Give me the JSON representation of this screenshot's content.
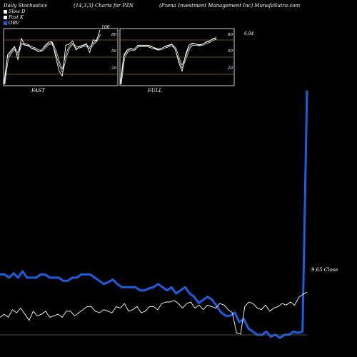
{
  "header": {
    "left": "Daily Stochastics",
    "middle": "(14,3,3) Charts for PZN",
    "right": "(Pzena  Investment Management Inc) MunafaSutra.com"
  },
  "legend": [
    {
      "label": "Slow  D",
      "color": "#ffffff"
    },
    {
      "label": "Fast K",
      "color": "#ffffff"
    },
    {
      "label": "OBV",
      "color": "#1a5fe0"
    }
  ],
  "colors": {
    "obv": "#1a5fe0",
    "price": "#ffffff",
    "panel_grid": "#8a6a10",
    "background": "#000000"
  },
  "chart_data": [
    {
      "type": "line",
      "name": "FAST",
      "label": "FAST",
      "yticks": [
        "80",
        "50",
        "20"
      ],
      "ylim": [
        0,
        100
      ],
      "annotation": "100",
      "series": [
        {
          "name": "Fast K",
          "values": [
            0,
            55,
            62,
            70,
            45,
            85,
            72,
            72,
            66,
            64,
            60,
            63,
            72,
            78,
            78,
            52,
            25,
            15,
            72,
            74,
            80,
            63,
            70,
            72,
            75,
            58,
            82,
            80,
            100
          ]
        },
        {
          "name": "Slow D",
          "values": [
            0,
            48,
            58,
            66,
            55,
            75,
            74,
            72,
            68,
            66,
            62,
            62,
            68,
            74,
            76,
            62,
            40,
            24,
            50,
            68,
            75,
            68,
            68,
            70,
            72,
            66,
            74,
            80,
            92
          ]
        }
      ]
    },
    {
      "type": "line",
      "name": "FULL",
      "label": "FULL",
      "yticks": [
        "80",
        "50",
        "20"
      ],
      "ylim": [
        0,
        100
      ],
      "annotation": "6.94",
      "series": [
        {
          "name": "Full K",
          "values": [
            0,
            55,
            64,
            66,
            64,
            72,
            72,
            72,
            72,
            70,
            66,
            64,
            66,
            70,
            72,
            74,
            64,
            40,
            24,
            55,
            72,
            76,
            74,
            72,
            74,
            78,
            80,
            84,
            86
          ]
        },
        {
          "name": "Full D",
          "values": [
            0,
            50,
            60,
            64,
            63,
            70,
            70,
            70,
            70,
            68,
            66,
            64,
            65,
            68,
            70,
            72,
            66,
            48,
            32,
            48,
            66,
            73,
            73,
            72,
            73,
            76,
            78,
            82,
            84
          ]
        }
      ]
    },
    {
      "type": "line",
      "name": "OBV",
      "series": [
        {
          "name": "OBV",
          "values": [
            330,
            330,
            325,
            332,
            325,
            335,
            325,
            325,
            325,
            330,
            330,
            325,
            325,
            325,
            320,
            320,
            325,
            325,
            330,
            330,
            330,
            325,
            320,
            315,
            318,
            322,
            315,
            310,
            310,
            310,
            310,
            305,
            305,
            308,
            310,
            315,
            310,
            305,
            310,
            300,
            305,
            310,
            300,
            295,
            285,
            290,
            295,
            290,
            280,
            270,
            265,
            265,
            270,
            255,
            260,
            245,
            240,
            235,
            235,
            240,
            232,
            235,
            230,
            235,
            235,
            240,
            238,
            240,
            620
          ]
        }
      ],
      "ylim": [
        200,
        650
      ]
    },
    {
      "type": "line",
      "name": "Close",
      "annotation": "9.65 Close",
      "series": [
        {
          "name": "Close",
          "values": [
            8.0,
            8.2,
            8.0,
            8.5,
            8.3,
            8.6,
            8.2,
            7.8,
            8.4,
            8.1,
            8.2,
            8.4,
            8.0,
            8.1,
            8.2,
            8.0,
            8.4,
            8.4,
            8.1,
            8.3,
            8.5,
            8.7,
            8.7,
            8.4,
            8.3,
            8.5,
            8.4,
            8.3,
            8.7,
            8.6,
            8.9,
            8.4,
            8.5,
            8.7,
            8.3,
            8.4,
            8.7,
            8.7,
            8.5,
            8.9,
            9.0,
            9.0,
            9.1,
            8.9,
            8.6,
            8.9,
            9.0,
            8.6,
            8.8,
            8.5,
            8.8,
            8.7,
            8.6,
            8.9,
            8.8,
            8.5,
            8.3,
            7.0,
            6.9,
            8.7,
            9.0,
            8.9,
            8.6,
            8.5,
            8.8,
            8.4,
            8.6,
            8.7,
            8.9,
            8.8,
            9.0,
            8.8,
            9.3,
            9.5,
            9.65
          ]
        }
      ],
      "ylim": [
        6.9,
        9.7
      ]
    }
  ],
  "labels": {
    "fast": "FAST",
    "full": "FULL",
    "close_label": "9.65 Close",
    "fast_top": "100",
    "full_top": "6.94"
  }
}
